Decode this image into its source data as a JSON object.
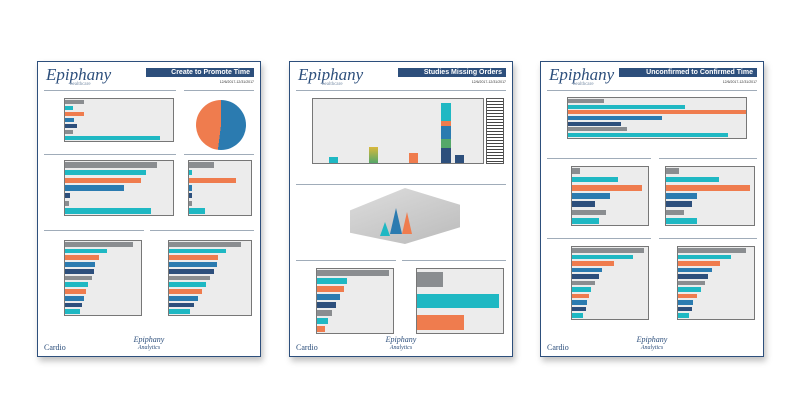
{
  "brand": {
    "logo": "Epiphany",
    "logo_sub": "healthcare",
    "footer_left": "Cardio",
    "footer_center": "Epiphany",
    "footer_center_sub": "Analytics"
  },
  "colors": {
    "navy": "#2d4f7c",
    "teal": "#1fb8c3",
    "orange": "#ef7c4e",
    "blue": "#2b7bb0",
    "gray": "#8a8d90"
  },
  "pages": [
    {
      "title": "Create to Promote Time",
      "date": "12/6/2017-12/31/2017"
    },
    {
      "title": "Studies Missing Orders",
      "date": "12/6/2017-12/31/2017"
    },
    {
      "title": "Unconfirmed to Confirmed Time",
      "date": "12/6/2017-12/31/2017"
    }
  ],
  "charts": {
    "p1_top": [
      {
        "v": 140,
        "c": "gray"
      },
      {
        "v": 60,
        "c": "teal"
      },
      {
        "v": 140,
        "c": "orange"
      },
      {
        "v": 70,
        "c": "blue"
      },
      {
        "v": 90,
        "c": "navy"
      },
      {
        "v": 60,
        "c": "gray"
      },
      {
        "v": 700,
        "c": "teal"
      }
    ],
    "p1_mid": [
      {
        "v": 85,
        "c": "gray"
      },
      {
        "v": 75,
        "c": "teal"
      },
      {
        "v": 70,
        "c": "orange"
      },
      {
        "v": 55,
        "c": "blue"
      },
      {
        "v": 5,
        "c": "navy"
      },
      {
        "v": 4,
        "c": "gray"
      },
      {
        "v": 80,
        "c": "teal"
      }
    ],
    "p1_midr": [
      {
        "v": 40,
        "c": "gray"
      },
      {
        "v": 5,
        "c": "teal"
      },
      {
        "v": 75,
        "c": "orange"
      },
      {
        "v": 5,
        "c": "blue"
      },
      {
        "v": 5,
        "c": "navy"
      },
      {
        "v": 5,
        "c": "gray"
      },
      {
        "v": 25,
        "c": "teal"
      }
    ],
    "p1_bl": [
      {
        "v": 90,
        "c": "gray"
      },
      {
        "v": 55,
        "c": "teal"
      },
      {
        "v": 45,
        "c": "orange"
      },
      {
        "v": 40,
        "c": "blue"
      },
      {
        "v": 38,
        "c": "navy"
      },
      {
        "v": 35,
        "c": "gray"
      },
      {
        "v": 30,
        "c": "teal"
      },
      {
        "v": 28,
        "c": "orange"
      },
      {
        "v": 25,
        "c": "blue"
      },
      {
        "v": 22,
        "c": "navy"
      },
      {
        "v": 20,
        "c": "teal"
      }
    ],
    "p1_br": [
      {
        "v": 88,
        "c": "gray"
      },
      {
        "v": 70,
        "c": "teal"
      },
      {
        "v": 60,
        "c": "orange"
      },
      {
        "v": 58,
        "c": "blue"
      },
      {
        "v": 55,
        "c": "navy"
      },
      {
        "v": 50,
        "c": "gray"
      },
      {
        "v": 45,
        "c": "teal"
      },
      {
        "v": 40,
        "c": "orange"
      },
      {
        "v": 35,
        "c": "blue"
      },
      {
        "v": 30,
        "c": "navy"
      },
      {
        "v": 25,
        "c": "teal"
      }
    ],
    "p3_top": [
      {
        "v": 20,
        "c": "gray"
      },
      {
        "v": 66,
        "c": "teal"
      },
      {
        "v": 100,
        "c": "orange"
      },
      {
        "v": 53,
        "c": "blue"
      },
      {
        "v": 30,
        "c": "navy"
      },
      {
        "v": 33,
        "c": "gray"
      },
      {
        "v": 90,
        "c": "teal"
      }
    ],
    "p3_ml": [
      {
        "v": 10,
        "c": "gray"
      },
      {
        "v": 60,
        "c": "teal"
      },
      {
        "v": 92,
        "c": "orange"
      },
      {
        "v": 50,
        "c": "blue"
      },
      {
        "v": 30,
        "c": "navy"
      },
      {
        "v": 45,
        "c": "gray"
      },
      {
        "v": 35,
        "c": "teal"
      }
    ],
    "p3_mr": [
      {
        "v": 15,
        "c": "gray"
      },
      {
        "v": 60,
        "c": "teal"
      },
      {
        "v": 95,
        "c": "orange"
      },
      {
        "v": 35,
        "c": "blue"
      },
      {
        "v": 30,
        "c": "navy"
      },
      {
        "v": 20,
        "c": "gray"
      },
      {
        "v": 35,
        "c": "teal"
      }
    ],
    "p3_bl": [
      {
        "v": 95,
        "c": "gray"
      },
      {
        "v": 80,
        "c": "teal"
      },
      {
        "v": 55,
        "c": "orange"
      },
      {
        "v": 40,
        "c": "blue"
      },
      {
        "v": 35,
        "c": "navy"
      },
      {
        "v": 30,
        "c": "gray"
      },
      {
        "v": 25,
        "c": "teal"
      },
      {
        "v": 22,
        "c": "orange"
      },
      {
        "v": 20,
        "c": "blue"
      },
      {
        "v": 18,
        "c": "navy"
      },
      {
        "v": 15,
        "c": "teal"
      }
    ],
    "p3_br": [
      {
        "v": 90,
        "c": "gray"
      },
      {
        "v": 70,
        "c": "teal"
      },
      {
        "v": 55,
        "c": "orange"
      },
      {
        "v": 45,
        "c": "blue"
      },
      {
        "v": 40,
        "c": "navy"
      },
      {
        "v": 35,
        "c": "gray"
      },
      {
        "v": 30,
        "c": "teal"
      },
      {
        "v": 25,
        "c": "orange"
      },
      {
        "v": 20,
        "c": "blue"
      },
      {
        "v": 18,
        "c": "navy"
      },
      {
        "v": 15,
        "c": "teal"
      }
    ],
    "p2_bl": [
      {
        "v": 95,
        "c": "gray"
      },
      {
        "v": 40,
        "c": "teal"
      },
      {
        "v": 35,
        "c": "orange"
      },
      {
        "v": 30,
        "c": "blue"
      },
      {
        "v": 25,
        "c": "navy"
      },
      {
        "v": 20,
        "c": "gray"
      },
      {
        "v": 15,
        "c": "teal"
      },
      {
        "v": 10,
        "c": "orange"
      }
    ],
    "p2_br": [
      {
        "v": 30,
        "c": "gray"
      },
      {
        "v": 95,
        "c": "teal"
      },
      {
        "v": 55,
        "c": "orange"
      }
    ]
  }
}
